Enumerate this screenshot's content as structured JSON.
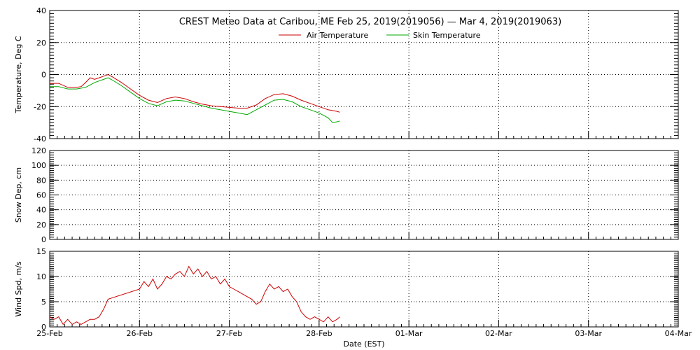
{
  "chart_data": [
    {
      "type": "line",
      "title": "CREST Meteo Data at Caribou, ME   Feb 25, 2019(2019056) — Mar  4, 2019(2019063)",
      "ylabel": "Temperature, Deg C",
      "ylim": [
        -40,
        40
      ],
      "yticks": [
        "40",
        "20",
        "0",
        "-20",
        "-40"
      ],
      "grid": true,
      "legend_position": "top-center",
      "series": [
        {
          "name": "Air Temperature",
          "color": "#cc0000",
          "x": [
            0,
            0.1,
            0.2,
            0.3,
            0.35,
            0.4,
            0.45,
            0.5,
            0.55,
            0.6,
            0.65,
            0.7,
            0.8,
            0.9,
            1.0,
            1.1,
            1.2,
            1.3,
            1.4,
            1.5,
            1.6,
            1.7,
            1.8,
            1.9,
            2.0,
            2.1,
            2.2,
            2.3,
            2.4,
            2.5,
            2.6,
            2.7,
            2.8,
            2.9,
            3.0,
            3.1,
            3.2,
            3.23
          ],
          "values": [
            -5.5,
            -5.5,
            -8,
            -8,
            -7.5,
            -5,
            -2,
            -3,
            -2,
            -1,
            0,
            -1.5,
            -5,
            -9,
            -13,
            -16,
            -17.5,
            -15,
            -14,
            -15,
            -17,
            -18.5,
            -19.5,
            -20,
            -20.5,
            -21,
            -21,
            -19,
            -15,
            -12.5,
            -12,
            -13.5,
            -16,
            -18,
            -20,
            -22,
            -23,
            -23.5
          ]
        },
        {
          "name": "Skin Temperature",
          "color": "#00aa00",
          "x": [
            0,
            0.1,
            0.2,
            0.3,
            0.4,
            0.5,
            0.6,
            0.65,
            0.7,
            0.8,
            0.9,
            1.0,
            1.1,
            1.2,
            1.3,
            1.4,
            1.5,
            1.6,
            1.7,
            1.8,
            1.9,
            2.0,
            2.1,
            2.2,
            2.3,
            2.4,
            2.5,
            2.6,
            2.7,
            2.8,
            2.9,
            3.0,
            3.1,
            3.15,
            3.2,
            3.23
          ],
          "values": [
            -7.5,
            -7.5,
            -9,
            -9,
            -8,
            -5,
            -3,
            -2,
            -3.5,
            -7,
            -11,
            -15,
            -18,
            -19.5,
            -17,
            -16,
            -16.5,
            -18,
            -19.5,
            -21,
            -22,
            -23,
            -24,
            -25,
            -22,
            -19,
            -16,
            -15.5,
            -17,
            -20,
            -22,
            -24,
            -27,
            -30,
            -29.5,
            -29
          ]
        }
      ]
    },
    {
      "type": "line",
      "ylabel": "Snow Dep, cm",
      "ylim": [
        0,
        120
      ],
      "yticks": [
        "120",
        "100",
        "80",
        "60",
        "40",
        "20",
        "0"
      ],
      "grid": true,
      "series": []
    },
    {
      "type": "line",
      "ylabel": "Wind Spd, m/s",
      "ylim": [
        0,
        15
      ],
      "yticks": [
        "15",
        "10",
        "5",
        "0"
      ],
      "grid": true,
      "series": [
        {
          "name": "Wind Speed",
          "color": "#cc0000",
          "x": [
            0,
            0.05,
            0.1,
            0.15,
            0.2,
            0.25,
            0.3,
            0.35,
            0.4,
            0.45,
            0.5,
            0.55,
            0.6,
            0.65,
            1.0,
            1.05,
            1.1,
            1.15,
            1.2,
            1.25,
            1.3,
            1.35,
            1.4,
            1.45,
            1.5,
            1.55,
            1.6,
            1.65,
            1.7,
            1.75,
            1.8,
            1.85,
            1.9,
            1.95,
            2.0,
            2.05,
            2.1,
            2.15,
            2.2,
            2.25,
            2.3,
            2.35,
            2.4,
            2.45,
            2.5,
            2.55,
            2.6,
            2.65,
            2.7,
            2.75,
            2.8,
            2.85,
            2.9,
            2.95,
            3.0,
            3.05,
            3.1,
            3.15,
            3.2,
            3.23
          ],
          "values": [
            2,
            1.5,
            2,
            0.5,
            1.5,
            0.5,
            1,
            0.5,
            1,
            1.5,
            1.5,
            2,
            3.5,
            5.5,
            7.5,
            9,
            8,
            9.5,
            7.5,
            8.5,
            10,
            9.5,
            10.5,
            11,
            10,
            12,
            10.5,
            11.5,
            10,
            11,
            9.5,
            10,
            8.5,
            9.5,
            8,
            7.5,
            7,
            6.5,
            6,
            5.5,
            4.5,
            5,
            7,
            8.5,
            7.5,
            8,
            7,
            7.5,
            6,
            5,
            3,
            2,
            1.5,
            2,
            1.5,
            1,
            2,
            1,
            1.5,
            2
          ]
        }
      ]
    }
  ],
  "xaxis": {
    "label": "Date (EST)",
    "ticks": [
      "25-Feb",
      "26-Feb",
      "27-Feb",
      "28-Feb",
      "01-Mar",
      "02-Mar",
      "03-Mar",
      "04-Mar"
    ]
  }
}
